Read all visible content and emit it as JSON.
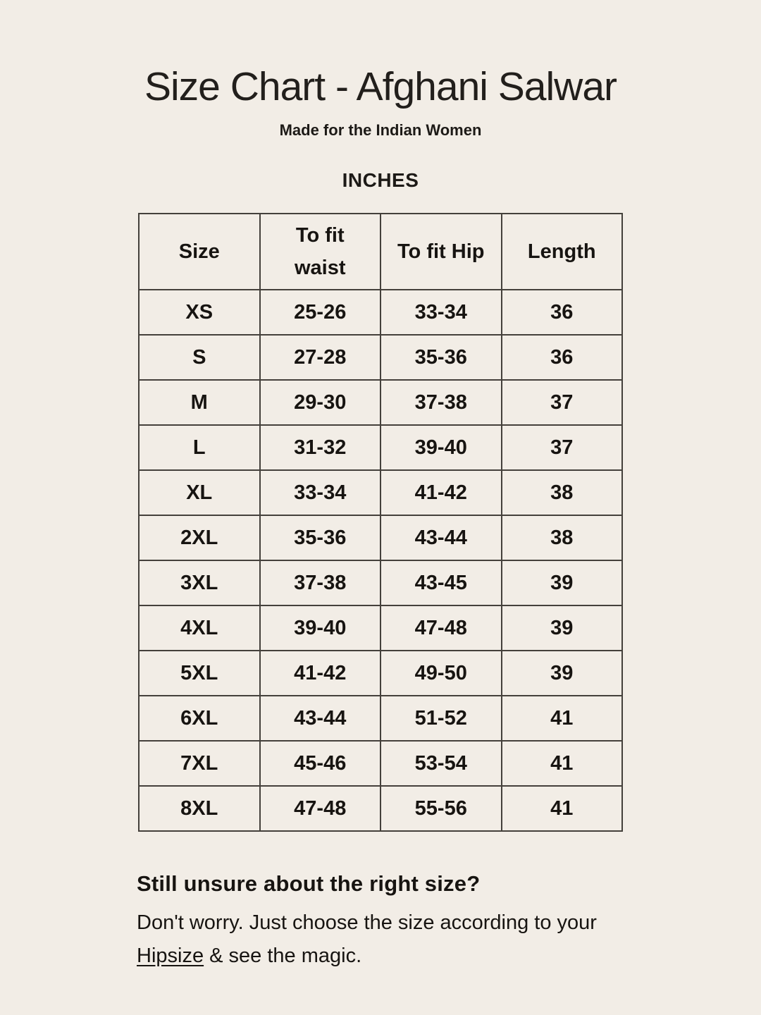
{
  "page": {
    "title": "Size Chart - Afghani Salwar",
    "subtitle": "Made for the Indian Women",
    "unit_label": "INCHES"
  },
  "table": {
    "headers": [
      "Size",
      "To fit\nwaist",
      "To fit Hip",
      "Length"
    ],
    "rows": [
      [
        "XS",
        "25-26",
        "33-34",
        "36"
      ],
      [
        "S",
        "27-28",
        "35-36",
        "36"
      ],
      [
        "M",
        "29-30",
        "37-38",
        "37"
      ],
      [
        "L",
        "31-32",
        "39-40",
        "37"
      ],
      [
        "XL",
        "33-34",
        "41-42",
        "38"
      ],
      [
        "2XL",
        "35-36",
        "43-44",
        "38"
      ],
      [
        "3XL",
        "37-38",
        "43-45",
        "39"
      ],
      [
        "4XL",
        "39-40",
        "47-48",
        "39"
      ],
      [
        "5XL",
        "41-42",
        "49-50",
        "39"
      ],
      [
        "6XL",
        "43-44",
        "51-52",
        "41"
      ],
      [
        "7XL",
        "45-46",
        "53-54",
        "41"
      ],
      [
        "8XL",
        "47-48",
        "55-56",
        "41"
      ]
    ]
  },
  "footer": {
    "heading": "Still unsure about the right size?",
    "body_line1": "Don't worry. Just choose the size according to your",
    "link_text": "Hipsize",
    "body_line2_rest": " & see the magic."
  },
  "colors": {
    "background": "#f2ede6",
    "text": "#171411",
    "table_border": "#44403b"
  }
}
